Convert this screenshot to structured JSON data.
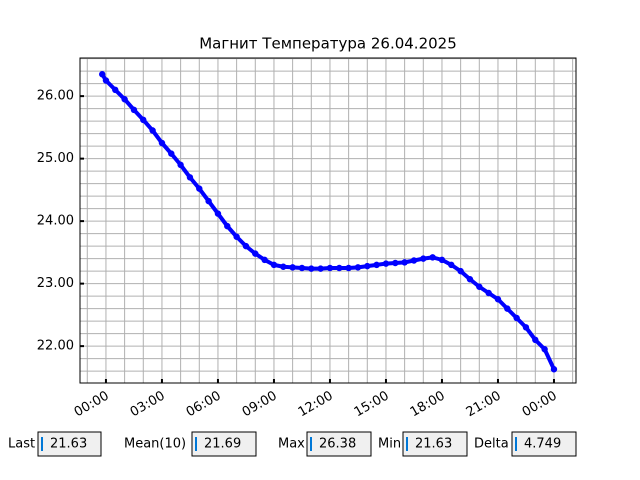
{
  "chart_data": {
    "type": "line",
    "title": "Магнит Температура 26.04.2025",
    "x": [
      -0.2,
      0,
      0.5,
      1,
      1.5,
      2,
      2.5,
      3,
      3.5,
      4,
      4.5,
      5,
      5.5,
      6,
      6.5,
      7,
      7.5,
      8,
      8.5,
      9,
      9.5,
      10,
      10.5,
      11,
      11.5,
      12,
      12.5,
      13,
      13.5,
      14,
      14.5,
      15,
      15.5,
      16,
      16.5,
      17,
      17.5,
      18,
      18.5,
      19,
      19.5,
      20,
      20.5,
      21,
      21.5,
      22,
      22.5,
      23,
      23.5,
      24
    ],
    "values": [
      26.35,
      26.25,
      26.1,
      25.95,
      25.78,
      25.62,
      25.45,
      25.25,
      25.08,
      24.9,
      24.7,
      24.52,
      24.32,
      24.12,
      23.92,
      23.75,
      23.6,
      23.48,
      23.38,
      23.3,
      23.27,
      23.26,
      23.25,
      23.24,
      23.24,
      23.25,
      23.25,
      23.25,
      23.26,
      23.28,
      23.3,
      23.32,
      23.33,
      23.34,
      23.37,
      23.4,
      23.42,
      23.38,
      23.3,
      23.2,
      23.07,
      22.95,
      22.85,
      22.75,
      22.6,
      22.45,
      22.3,
      22.1,
      21.95,
      21.63
    ],
    "color": "#0000ff",
    "xlim": [
      -1.39,
      25.18
    ],
    "ylim": [
      21.41,
      26.61
    ],
    "xticks": [
      {
        "value": 0,
        "label": "00:00"
      },
      {
        "value": 3,
        "label": "03:00"
      },
      {
        "value": 6,
        "label": "06:00"
      },
      {
        "value": 9,
        "label": "09:00"
      },
      {
        "value": 12,
        "label": "12:00"
      },
      {
        "value": 15,
        "label": "15:00"
      },
      {
        "value": 18,
        "label": "18:00"
      },
      {
        "value": 21,
        "label": "21:00"
      },
      {
        "value": 24,
        "label": "00:00"
      }
    ],
    "yticks": [
      {
        "value": 22,
        "label": "22.00"
      },
      {
        "value": 23,
        "label": "23.00"
      },
      {
        "value": 24,
        "label": "24.00"
      },
      {
        "value": 25,
        "label": "25.00"
      },
      {
        "value": 26,
        "label": "26.00"
      }
    ],
    "xminorticks": [
      -1,
      0,
      1,
      2,
      3,
      4,
      5,
      6,
      7,
      8,
      9,
      10,
      11,
      12,
      13,
      14,
      15,
      16,
      17,
      18,
      19,
      20,
      21,
      22,
      23,
      24,
      25
    ],
    "yminorticks": [
      21.6,
      21.8,
      22,
      22.2,
      22.4,
      22.6,
      22.8,
      23,
      23.2,
      23.4,
      23.6,
      23.8,
      24,
      24.2,
      24.4,
      24.6,
      24.8,
      25,
      25.2,
      25.4,
      25.6,
      25.8,
      26,
      26.2,
      26.4,
      26.6
    ],
    "grid": true
  },
  "widgets": [
    {
      "label": "Last",
      "value": "21.63"
    },
    {
      "label": "Mean(10)",
      "value": "21.69"
    },
    {
      "label": "Max",
      "value": "26.38"
    },
    {
      "label": "Min",
      "value": "21.63"
    },
    {
      "label": "Delta",
      "value": "4.749"
    }
  ]
}
